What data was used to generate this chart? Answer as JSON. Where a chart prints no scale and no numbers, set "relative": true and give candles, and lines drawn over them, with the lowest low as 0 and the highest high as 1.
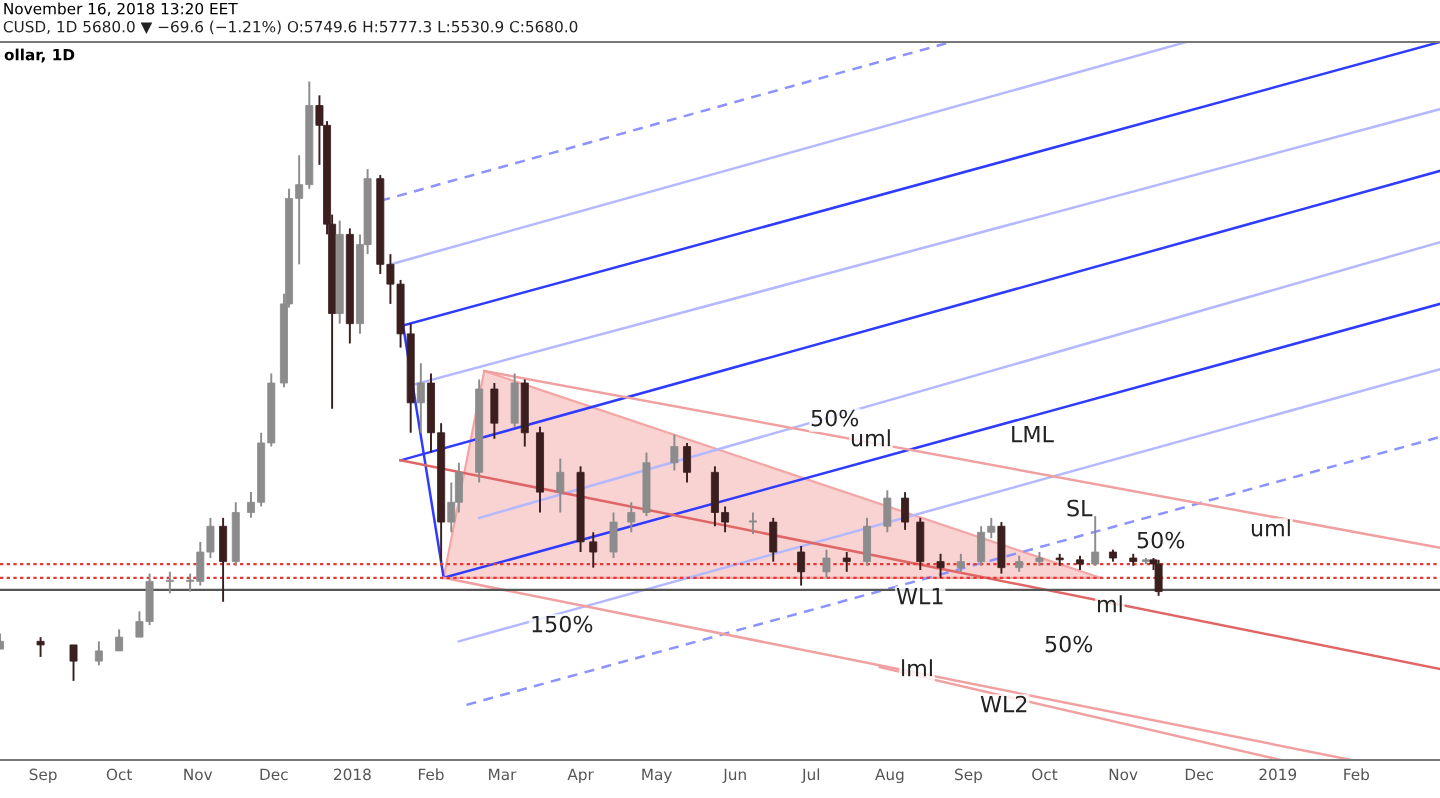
{
  "chart_data": {
    "type": "candlestick",
    "relative": true,
    "title": "November 16, 2018 13:20 EET",
    "subtitle": "CUSD, 1D 5680.0 ▼ −69.6 (−1.21%) O:5749.6 H:5777.3 L:5530.9 C:5680.0",
    "xlim": [
      "2017-08-15",
      "2019-03-06"
    ],
    "xticks": [
      {
        "value": "2017-09-01",
        "label": "Sep"
      },
      {
        "value": "2017-10-01",
        "label": "Oct"
      },
      {
        "value": "2017-11-01",
        "label": "Nov"
      },
      {
        "value": "2017-12-01",
        "label": "Dec"
      },
      {
        "value": "2018-01-01",
        "label": "2018"
      },
      {
        "value": "2018-02-01",
        "label": "Feb"
      },
      {
        "value": "2018-03-01",
        "label": "Mar"
      },
      {
        "value": "2018-04-01",
        "label": "Apr"
      },
      {
        "value": "2018-05-01",
        "label": "May"
      },
      {
        "value": "2018-06-01",
        "label": "Jun"
      },
      {
        "value": "2018-07-01",
        "label": "Jul"
      },
      {
        "value": "2018-08-01",
        "label": "Aug"
      },
      {
        "value": "2018-09-01",
        "label": "Sep"
      },
      {
        "value": "2018-10-01",
        "label": "Oct"
      },
      {
        "value": "2018-11-01",
        "label": "Nov"
      },
      {
        "value": "2018-12-01",
        "label": "Dec"
      },
      {
        "value": "2019-01-01",
        "label": "2019"
      },
      {
        "value": "2019-02-01",
        "label": "Feb"
      }
    ],
    "x": [
      "2017-08-15",
      "2017-08-31",
      "2017-09-13",
      "2017-09-23",
      "2017-10-01",
      "2017-10-09",
      "2017-10-13",
      "2017-10-21",
      "2017-10-29",
      "2017-11-02",
      "2017-11-06",
      "2017-11-11",
      "2017-11-16",
      "2017-11-22",
      "2017-11-26",
      "2017-11-30",
      "2017-12-05",
      "2017-12-07",
      "2017-12-11",
      "2017-12-15",
      "2017-12-19",
      "2017-12-22",
      "2017-12-24",
      "2017-12-27",
      "2017-12-31",
      "2018-01-04",
      "2018-01-07",
      "2018-01-12",
      "2018-01-16",
      "2018-01-20",
      "2018-01-24",
      "2018-01-28",
      "2018-02-01",
      "2018-02-05",
      "2018-02-09",
      "2018-02-12",
      "2018-02-20",
      "2018-02-26",
      "2018-03-06",
      "2018-03-10",
      "2018-03-16",
      "2018-03-24",
      "2018-04-01",
      "2018-04-06",
      "2018-04-14",
      "2018-04-21",
      "2018-04-27",
      "2018-05-08",
      "2018-05-13",
      "2018-05-24",
      "2018-05-28",
      "2018-06-08",
      "2018-06-16",
      "2018-06-27",
      "2018-07-07",
      "2018-07-15",
      "2018-07-23",
      "2018-07-31",
      "2018-08-07",
      "2018-08-13",
      "2018-08-21",
      "2018-08-29",
      "2018-09-06",
      "2018-09-10",
      "2018-09-14",
      "2018-09-21",
      "2018-09-29",
      "2018-10-07",
      "2018-10-15",
      "2018-10-21",
      "2018-10-28",
      "2018-11-05",
      "2018-11-10",
      "2018-11-13",
      "2018-11-15"
    ],
    "ohlc": [
      [
        0.053,
        0.079,
        0.053,
        0.066
      ],
      [
        0.066,
        0.073,
        0.04,
        0.06
      ],
      [
        0.06,
        0.06,
        0,
        0.033
      ],
      [
        0.033,
        0.066,
        0.026,
        0.05
      ],
      [
        0.05,
        0.086,
        0.05,
        0.073
      ],
      [
        0.073,
        0.116,
        0.073,
        0.099
      ],
      [
        0.099,
        0.179,
        0.093,
        0.166
      ],
      [
        0.166,
        0.182,
        0.146,
        0.166
      ],
      [
        0.166,
        0.179,
        0.149,
        0.166
      ],
      [
        0.166,
        0.232,
        0.159,
        0.215
      ],
      [
        0.215,
        0.272,
        0.205,
        0.258
      ],
      [
        0.258,
        0.272,
        0.132,
        0.199
      ],
      [
        0.199,
        0.298,
        0.192,
        0.281
      ],
      [
        0.281,
        0.315,
        0.272,
        0.298
      ],
      [
        0.298,
        0.414,
        0.291,
        0.397
      ],
      [
        0.397,
        0.513,
        0.391,
        0.497
      ],
      [
        0.497,
        0.646,
        0.49,
        0.629
      ],
      [
        0.629,
        0.821,
        0.623,
        0.805
      ],
      [
        0.805,
        0.877,
        0.695,
        0.828
      ],
      [
        0.828,
        1.0,
        0.821,
        0.96
      ],
      [
        0.96,
        0.977,
        0.861,
        0.927
      ],
      [
        0.927,
        0.934,
        0.745,
        0.762
      ],
      [
        0.762,
        0.778,
        0.454,
        0.613
      ],
      [
        0.613,
        0.768,
        0.596,
        0.745
      ],
      [
        0.745,
        0.755,
        0.563,
        0.596
      ],
      [
        0.596,
        0.745,
        0.579,
        0.728
      ],
      [
        0.728,
        0.854,
        0.712,
        0.838
      ],
      [
        0.838,
        0.844,
        0.679,
        0.695
      ],
      [
        0.695,
        0.712,
        0.629,
        0.662
      ],
      [
        0.662,
        0.669,
        0.556,
        0.579
      ],
      [
        0.579,
        0.596,
        0.414,
        0.464
      ],
      [
        0.464,
        0.53,
        0.414,
        0.497
      ],
      [
        0.497,
        0.513,
        0.381,
        0.414
      ],
      [
        0.414,
        0.43,
        0.199,
        0.265
      ],
      [
        0.265,
        0.331,
        0.248,
        0.298
      ],
      [
        0.298,
        0.364,
        0.281,
        0.348
      ],
      [
        0.348,
        0.503,
        0.331,
        0.487
      ],
      [
        0.487,
        0.497,
        0.404,
        0.43
      ],
      [
        0.43,
        0.513,
        0.424,
        0.497
      ],
      [
        0.497,
        0.503,
        0.391,
        0.414
      ],
      [
        0.414,
        0.424,
        0.281,
        0.315
      ],
      [
        0.315,
        0.371,
        0.281,
        0.348
      ],
      [
        0.348,
        0.358,
        0.215,
        0.232
      ],
      [
        0.232,
        0.248,
        0.189,
        0.215
      ],
      [
        0.215,
        0.281,
        0.205,
        0.265
      ],
      [
        0.265,
        0.298,
        0.248,
        0.281
      ],
      [
        0.281,
        0.381,
        0.275,
        0.364
      ],
      [
        0.364,
        0.411,
        0.351,
        0.391
      ],
      [
        0.391,
        0.397,
        0.331,
        0.348
      ],
      [
        0.348,
        0.358,
        0.258,
        0.281
      ],
      [
        0.281,
        0.291,
        0.248,
        0.265
      ],
      [
        0.265,
        0.281,
        0.245,
        0.265
      ],
      [
        0.265,
        0.272,
        0.199,
        0.215
      ],
      [
        0.215,
        0.225,
        0.159,
        0.182
      ],
      [
        0.182,
        0.219,
        0.172,
        0.205
      ],
      [
        0.205,
        0.215,
        0.182,
        0.199
      ],
      [
        0.199,
        0.272,
        0.192,
        0.258
      ],
      [
        0.258,
        0.318,
        0.248,
        0.305
      ],
      [
        0.305,
        0.315,
        0.252,
        0.265
      ],
      [
        0.265,
        0.272,
        0.185,
        0.199
      ],
      [
        0.199,
        0.212,
        0.172,
        0.189
      ],
      [
        0.189,
        0.212,
        0.182,
        0.199
      ],
      [
        0.199,
        0.258,
        0.192,
        0.248
      ],
      [
        0.248,
        0.272,
        0.238,
        0.258
      ],
      [
        0.258,
        0.265,
        0.179,
        0.189
      ],
      [
        0.189,
        0.209,
        0.182,
        0.199
      ],
      [
        0.199,
        0.215,
        0.192,
        0.205
      ],
      [
        0.205,
        0.212,
        0.192,
        0.202
      ],
      [
        0.202,
        0.209,
        0.185,
        0.195
      ],
      [
        0.195,
        0.275,
        0.192,
        0.215
      ],
      [
        0.215,
        0.219,
        0.199,
        0.205
      ],
      [
        0.205,
        0.212,
        0.192,
        0.199
      ],
      [
        0.199,
        0.205,
        0.195,
        0.202
      ],
      [
        0.202,
        0.205,
        0.185,
        0.195
      ],
      [
        0.195,
        0.202,
        0.142,
        0.149
      ]
    ],
    "series": [
      {
        "type": "area",
        "color": "#f4a6a6",
        "x": [
          "2018-02-06",
          "2018-02-22",
          "2018-10-23",
          "2018-02-06"
        ],
        "values": [
          0.172,
          0.517,
          0.172,
          0.172
        ]
      },
      {
        "type": "line",
        "color": "#2f3cff",
        "x": [
          "2018-01-21",
          "2018-02-06"
        ],
        "values": [
          0.593,
          0.172
        ]
      },
      {
        "type": "line",
        "color": "#2f3cff",
        "x": [
          "2018-01-21",
          "2019-03-06"
        ],
        "values": [
          0.593,
          1.066
        ]
      },
      {
        "type": "line",
        "color": "#2f3cff",
        "x": [
          "2018-01-20",
          "2019-03-06"
        ],
        "values": [
          0.368,
          0.851
        ]
      },
      {
        "type": "line",
        "color": "#2f3cff",
        "x": [
          "2018-02-06",
          "2019-03-06"
        ],
        "values": [
          0.172,
          0.629
        ]
      },
      {
        "type": "line",
        "color": "#8c93ff",
        "line_style": "dashed",
        "x": [
          "2018-01-12",
          "2018-08-25"
        ],
        "values": [
          0.801,
          1.066
        ]
      },
      {
        "type": "line",
        "color": "#b3b8ff",
        "x": [
          "2018-01-16",
          "2018-11-26"
        ],
        "values": [
          0.695,
          1.066
        ]
      },
      {
        "type": "line",
        "color": "#b3b8ff",
        "x": [
          "2018-01-24",
          "2019-03-06"
        ],
        "values": [
          0.493,
          0.954
        ]
      },
      {
        "type": "line",
        "color": "#b3b8ff",
        "x": [
          "2018-02-20",
          "2019-03-06"
        ],
        "values": [
          0.272,
          0.732
        ]
      },
      {
        "type": "line",
        "color": "#b3b8ff",
        "x": [
          "2018-02-12",
          "2019-03-06"
        ],
        "values": [
          0.066,
          0.52
        ]
      },
      {
        "type": "line",
        "color": "#8c93ff",
        "line_style": "dashed",
        "x": [
          "2018-02-15",
          "2019-03-06"
        ],
        "values": [
          -0.04,
          0.407
        ]
      },
      {
        "type": "line",
        "color": "#f0a0a0",
        "x": [
          "2018-02-22",
          "2019-03-06"
        ],
        "values": [
          0.517,
          0.222
        ]
      },
      {
        "type": "line",
        "color": "#e06666",
        "x": [
          "2018-01-20",
          "2019-03-06"
        ],
        "values": [
          0.368,
          0.02
        ]
      },
      {
        "type": "line",
        "color": "#f0a0a0",
        "x": [
          "2018-02-06",
          "2019-01-30"
        ],
        "values": [
          0.172,
          -0.132
        ]
      },
      {
        "type": "line",
        "color": "#f0a0a0",
        "x": [
          "2018-07-28",
          "2019-01-02"
        ],
        "values": [
          0.023,
          -0.132
        ]
      }
    ],
    "ref_lines": [
      {
        "axis": "y",
        "value": 0.195,
        "color": "#e53935",
        "line_style": "dotted"
      },
      {
        "axis": "y",
        "value": 0.172,
        "color": "#e53935",
        "line_style": "dotted"
      },
      {
        "axis": "y",
        "value": 0.152,
        "color": "#555555",
        "line_style": "solid"
      }
    ],
    "annotations": [
      "ollar, 1D",
      "50%",
      "uml",
      "LML",
      "SL",
      "50%",
      "uml",
      "WL1",
      "ml",
      "150%",
      "50%",
      "lml",
      "WL2"
    ],
    "grid": false,
    "legend": false
  }
}
